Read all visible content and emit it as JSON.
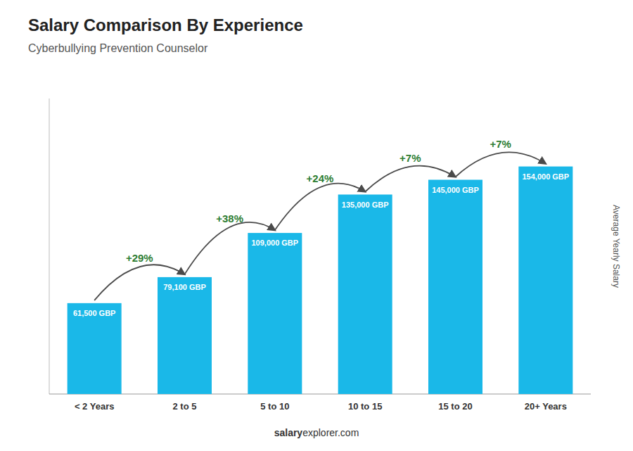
{
  "chart_data": {
    "type": "bar",
    "title": "Salary Comparison By Experience",
    "subtitle": "Cyberbullying Prevention Counselor",
    "y_label": "Average Yearly Salary",
    "categories": [
      "< 2 Years",
      "2 to 5",
      "5 to 10",
      "10 to 15",
      "15 to 20",
      "20+ Years"
    ],
    "values": [
      61500,
      79100,
      109000,
      135000,
      145000,
      154000
    ],
    "value_labels": [
      "61,500 GBP",
      "79,100 GBP",
      "109,000 GBP",
      "135,000 GBP",
      "145,000 GBP",
      "154,000 GBP"
    ],
    "data_labels": true,
    "annotations": [
      "+29%",
      "+38%",
      "+24%",
      "+7%",
      "+7%"
    ],
    "footer": [
      "salary",
      "explorer.com"
    ],
    "color": "#1ab8e8",
    "ylim": [
      0,
      200000
    ],
    "tick_labels": "x",
    "grid": false
  }
}
